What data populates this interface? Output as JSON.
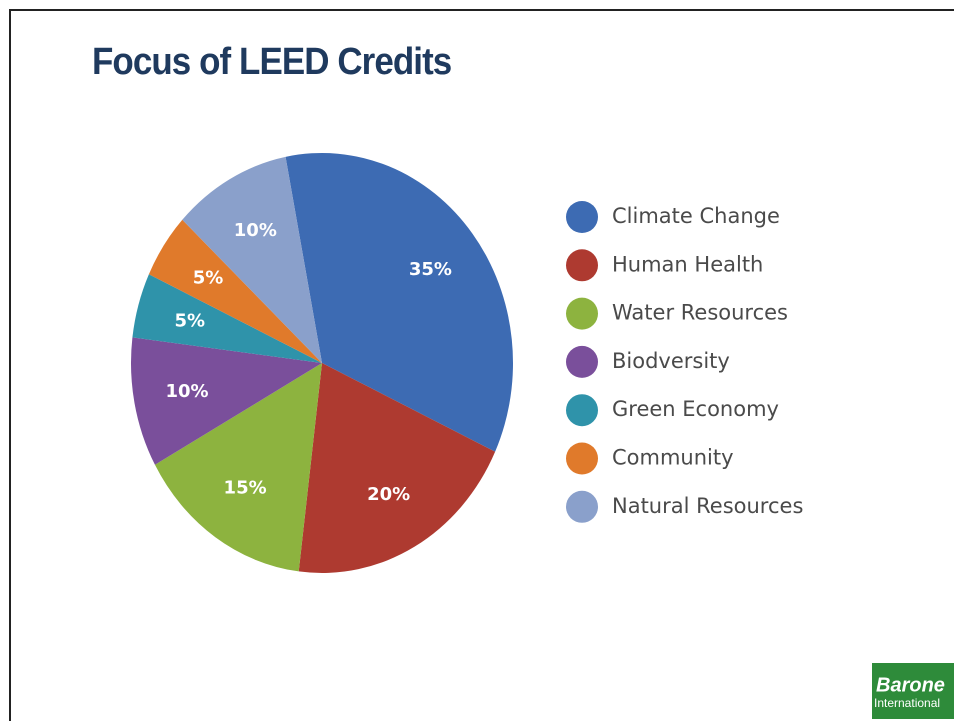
{
  "chart_data": {
    "type": "pie",
    "title": "Focus of LEED Credits",
    "categories": [
      "Climate Change",
      "Human Health",
      "Water Resources",
      "Biodversity",
      "Green Economy",
      "Community",
      "Natural Resources"
    ],
    "values": [
      35,
      20,
      15,
      10,
      5,
      5,
      10
    ],
    "value_labels": [
      "35%",
      "20%",
      "15%",
      "10%",
      "5%",
      "5%",
      "10%"
    ],
    "colors": [
      "#3d6bb3",
      "#ae3a30",
      "#8db33f",
      "#7a4f9b",
      "#2f93aa",
      "#e07a2b",
      "#8aa0cb"
    ],
    "legend": "right"
  },
  "logo": {
    "name": "Barone",
    "subtitle": "International"
  }
}
